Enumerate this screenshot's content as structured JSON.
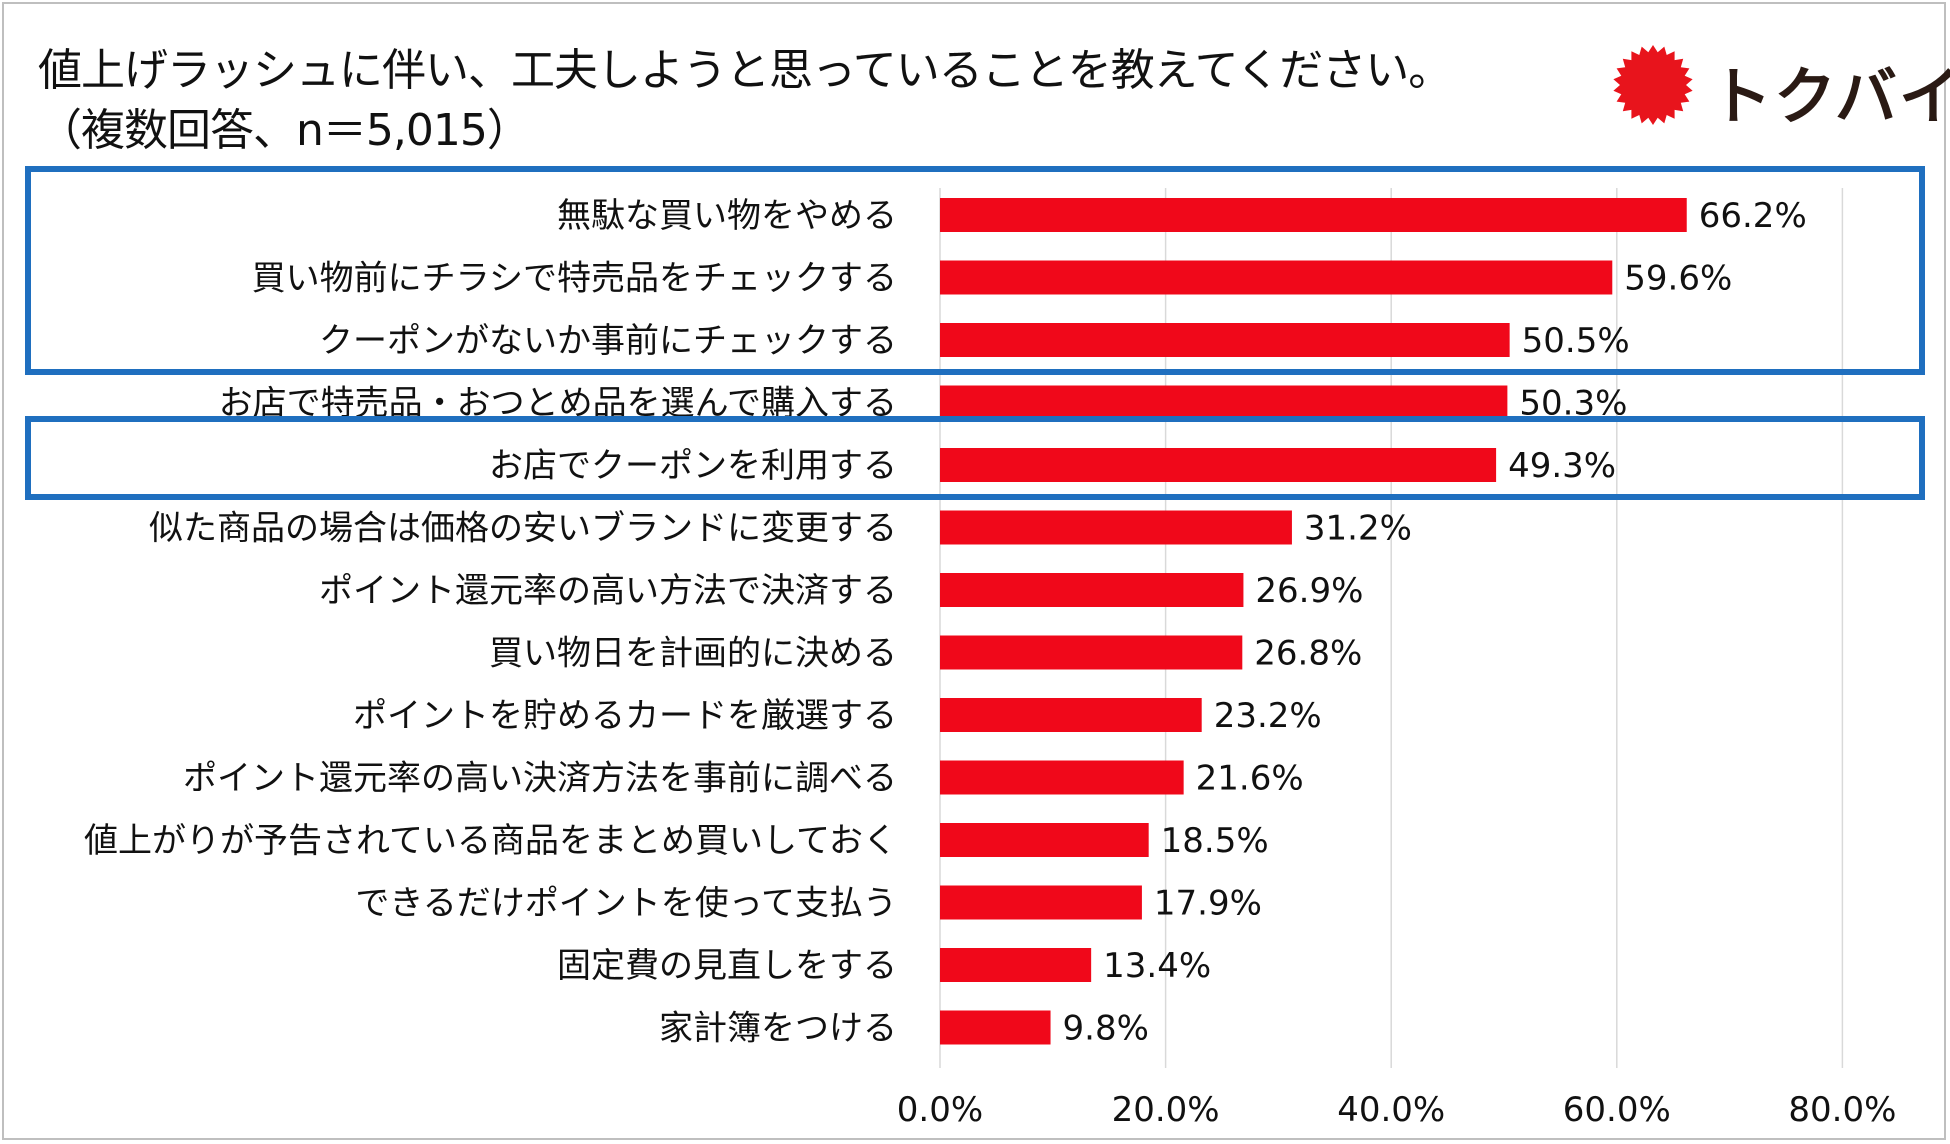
{
  "title_lines": [
    "値上げラッシュに伴い、工夫しようと思っていることを教えてください。",
    "（複数回答、n＝5,015）"
  ],
  "brand": {
    "name": "トクバイ",
    "logo_icon": "red-sunburst-icon",
    "logo_color": "#e8141c"
  },
  "colors": {
    "bar": "#f0081a",
    "highlight_box": "#1f6fbf",
    "gridline": "#d9d9d9"
  },
  "chart_data": {
    "type": "bar",
    "orientation": "horizontal",
    "categories": [
      "無駄な買い物をやめる",
      "買い物前にチラシで特売品をチェックする",
      "クーポンがないか事前にチェックする",
      "お店で特売品・おつとめ品を選んで購入する",
      "お店でクーポンを利用する",
      "似た商品の場合は価格の安いブランドに変更する",
      "ポイント還元率の高い方法で決済する",
      "買い物日を計画的に決める",
      "ポイントを貯めるカードを厳選する",
      "ポイント還元率の高い決済方法を事前に調べる",
      "値上がりが予告されている商品をまとめ買いしておく",
      "できるだけポイントを使って支払う",
      "固定費の見直しをする",
      "家計簿をつける"
    ],
    "values": [
      66.2,
      59.6,
      50.5,
      50.3,
      49.3,
      31.2,
      26.9,
      26.8,
      23.2,
      21.6,
      18.5,
      17.9,
      13.4,
      9.8
    ],
    "value_labels": [
      "66.2%",
      "59.6%",
      "50.5%",
      "50.3%",
      "49.3%",
      "31.2%",
      "26.9%",
      "26.8%",
      "23.2%",
      "21.6%",
      "18.5%",
      "17.9%",
      "13.4%",
      "9.8%"
    ],
    "xlim": [
      0,
      80
    ],
    "xticks": [
      0,
      20,
      40,
      60,
      80
    ],
    "xtick_labels": [
      "0.0%",
      "20.0%",
      "40.0%",
      "60.0%",
      "80.0%"
    ],
    "grid": "vertical",
    "highlight_groups": [
      {
        "from": 0,
        "to": 2
      },
      {
        "from": 4,
        "to": 4
      }
    ]
  }
}
